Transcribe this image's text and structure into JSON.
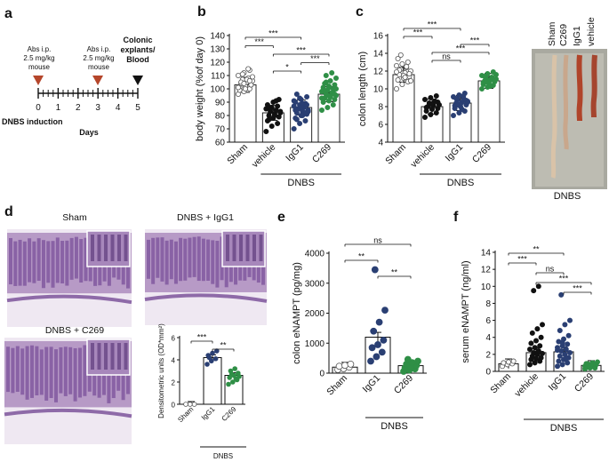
{
  "colors": {
    "open": "#ffffff",
    "vehicle": "#111111",
    "igg1": "#2a3f73",
    "c269": "#2f8f46",
    "tissue": "#7a4f9a"
  },
  "panel_labels": [
    "a",
    "b",
    "c",
    "d",
    "e",
    "f"
  ],
  "timeline": {
    "dose_labels": [
      [
        "Abs i.p.",
        "2.5 mg/kg",
        "mouse"
      ],
      [
        "Abs i.p.",
        "2.5 mg/kg",
        "mouse"
      ]
    ],
    "end_labels": [
      "Colonic",
      "explants/",
      "Blood"
    ],
    "ticks": [
      "0",
      "1",
      "2",
      "3",
      "4",
      "5"
    ],
    "left_label": "DNBS induction",
    "axis_label": "Days"
  },
  "panel_c_photo": {
    "lanes": [
      "Sham",
      "C269",
      "IgG1",
      "vehicle"
    ],
    "group_label": "DNBS"
  },
  "panel_d": {
    "titles": [
      "Sham",
      "DNBS + IgG1",
      "DNBS + C269"
    ]
  },
  "chart_data": [
    {
      "id": "b",
      "type": "scatter",
      "ylabel": "body weight (%of day 0)",
      "ylim": [
        60,
        140
      ],
      "yticks": [
        "60",
        "70",
        "80",
        "90",
        "100",
        "110",
        "120",
        "130",
        "140"
      ],
      "categories": [
        "Sham",
        "vehicle",
        "IgG1",
        "C269"
      ],
      "group_label": "DNBS",
      "means": [
        103,
        82,
        86,
        96
      ],
      "significance": [
        {
          "from": 0,
          "to": 2,
          "text": "***"
        },
        {
          "from": 0,
          "to": 1,
          "text": "***"
        },
        {
          "from": 1,
          "to": 3,
          "text": "***"
        },
        {
          "from": 2,
          "to": 3,
          "text": "***"
        },
        {
          "from": 1,
          "to": 2,
          "text": "*"
        }
      ],
      "points": [
        [
          96,
          98,
          100,
          101,
          102,
          103,
          104,
          105,
          106,
          107,
          108,
          110,
          112,
          114,
          99,
          100,
          103,
          105,
          107,
          109,
          111,
          115,
          101,
          104,
          106
        ],
        [
          68,
          72,
          74,
          76,
          78,
          79,
          80,
          81,
          82,
          83,
          84,
          85,
          86,
          87,
          88,
          90,
          92,
          77,
          80,
          83,
          85,
          91
        ],
        [
          70,
          74,
          76,
          78,
          80,
          81,
          82,
          83,
          84,
          85,
          86,
          87,
          88,
          89,
          90,
          92,
          94,
          96,
          80,
          83,
          85,
          87,
          91,
          93,
          82,
          84,
          86,
          88,
          77,
          89
        ],
        [
          84,
          86,
          88,
          90,
          91,
          92,
          93,
          94,
          95,
          96,
          97,
          98,
          99,
          100,
          101,
          102,
          103,
          104,
          106,
          108,
          110,
          112,
          93,
          95,
          97,
          99,
          101,
          96,
          98,
          94,
          100,
          105
        ]
      ]
    },
    {
      "id": "c",
      "type": "scatter",
      "ylabel": "colon length (cm)",
      "ylim": [
        4,
        16
      ],
      "yticks": [
        "4",
        "6",
        "8",
        "10",
        "12",
        "14",
        "16"
      ],
      "categories": [
        "Sham",
        "vehicle",
        "IgG1",
        "C269"
      ],
      "group_label": "DNBS",
      "means": [
        11.6,
        8.0,
        8.4,
        10.9
      ],
      "significance": [
        {
          "from": 0,
          "to": 2,
          "text": "***"
        },
        {
          "from": 0,
          "to": 1,
          "text": "***"
        },
        {
          "from": 2,
          "to": 3,
          "text": "***"
        },
        {
          "from": 1,
          "to": 3,
          "text": "***"
        },
        {
          "from": 1,
          "to": 2,
          "text": "ns"
        }
      ],
      "points": [
        [
          10,
          10.5,
          10.8,
          11,
          11.2,
          11.4,
          11.6,
          11.8,
          12,
          12.2,
          12.4,
          12.6,
          12.8,
          13,
          13.4,
          11.5,
          11.7,
          12.1,
          11.3,
          10.9,
          13.8,
          12.5,
          11.9
        ],
        [
          6.8,
          7.1,
          7.3,
          7.5,
          7.7,
          7.8,
          8,
          8.1,
          8.2,
          8.4,
          8.6,
          8.8,
          9,
          9.2,
          7.9,
          8.3,
          8.5
        ],
        [
          7,
          7.3,
          7.5,
          7.8,
          8,
          8.2,
          8.4,
          8.5,
          8.6,
          8.8,
          9,
          9.1,
          9.3,
          9.5,
          8.1,
          8.3,
          8.7,
          8.9,
          7.7,
          8.5,
          8.2,
          9.2
        ],
        [
          10,
          10.2,
          10.4,
          10.5,
          10.6,
          10.8,
          10.9,
          11,
          11.1,
          11.2,
          11.3,
          11.5,
          11.7,
          11.9,
          10.7,
          10.9,
          11,
          11.4,
          10.3,
          11.6,
          10.8,
          11.1
        ]
      ]
    },
    {
      "id": "d_chart",
      "type": "bar",
      "ylabel": "Densitometric units (OD*mm²)",
      "ylim": [
        0,
        6
      ],
      "yticks": [
        "0",
        "2",
        "4",
        "6"
      ],
      "categories": [
        "Sham",
        "IgG1",
        "C269"
      ],
      "group_label": "DNBS",
      "values": [
        0,
        4.2,
        2.6
      ],
      "significance": [
        {
          "from": 0,
          "to": 1,
          "text": "***"
        },
        {
          "from": 1,
          "to": 2,
          "text": "**"
        }
      ],
      "points": [
        [
          0,
          0,
          0
        ],
        [
          3.6,
          3.9,
          4.1,
          4.4,
          4.6,
          4.8,
          4.2
        ],
        [
          1.8,
          2,
          2.2,
          2.4,
          2.6,
          2.8,
          3,
          3.2,
          2.5,
          2.7,
          2.3
        ]
      ]
    },
    {
      "id": "e",
      "type": "bar",
      "ylabel": "colon eNAMPT (pg/mg)",
      "ylim": [
        0,
        4000
      ],
      "yticks": [
        "0",
        "1000",
        "2000",
        "3000",
        "4000"
      ],
      "categories": [
        "Sham",
        "IgG1",
        "C269"
      ],
      "group_label": "DNBS",
      "values": [
        200,
        1200,
        250
      ],
      "significance": [
        {
          "from": 0,
          "to": 2,
          "text": "ns"
        },
        {
          "from": 0,
          "to": 1,
          "text": "**"
        },
        {
          "from": 1,
          "to": 2,
          "text": "**"
        }
      ],
      "points": [
        [
          120,
          150,
          200,
          230,
          260,
          300
        ],
        [
          400,
          550,
          700,
          850,
          950,
          1100,
          1400,
          1700,
          2100,
          3450
        ],
        [
          60,
          100,
          140,
          180,
          220,
          260,
          300,
          350,
          400,
          460
        ]
      ]
    },
    {
      "id": "f",
      "type": "bar",
      "ylabel": "serum eNAMPT (ng/ml)",
      "ylim": [
        0,
        14
      ],
      "yticks": [
        "0",
        "2",
        "4",
        "6",
        "8",
        "10",
        "12",
        "14"
      ],
      "categories": [
        "Sham",
        "vehicle",
        "IgG1",
        "C269"
      ],
      "group_label": "DNBS",
      "values": [
        0.9,
        2.2,
        2.3,
        0.7
      ],
      "significance": [
        {
          "from": 0,
          "to": 2,
          "text": "**"
        },
        {
          "from": 0,
          "to": 1,
          "text": "***"
        },
        {
          "from": 1,
          "to": 2,
          "text": "ns"
        },
        {
          "from": 1,
          "to": 3,
          "text": "***"
        },
        {
          "from": 2,
          "to": 3,
          "text": "***"
        }
      ],
      "points": [
        [
          0.6,
          0.8,
          0.9,
          1,
          1.1,
          1.2
        ],
        [
          0.8,
          1,
          1.2,
          1.4,
          1.5,
          1.6,
          1.8,
          2,
          2.1,
          2.2,
          2.4,
          2.6,
          2.8,
          3,
          3.3,
          3.6,
          4,
          4.5,
          5,
          5.5,
          9.5,
          10
        ],
        [
          0.6,
          0.8,
          1,
          1.2,
          1.4,
          1.6,
          1.8,
          2,
          2.2,
          2.4,
          2.6,
          2.8,
          3,
          3.2,
          3.5,
          3.8,
          4.2,
          4.8,
          5.5,
          6,
          9,
          1.5,
          2.5,
          3.4
        ],
        [
          0.3,
          0.4,
          0.5,
          0.6,
          0.7,
          0.8,
          0.9,
          1,
          1.1,
          0.5,
          0.7,
          0.6,
          0.8,
          0.4,
          0.9,
          0.75
        ]
      ]
    }
  ]
}
